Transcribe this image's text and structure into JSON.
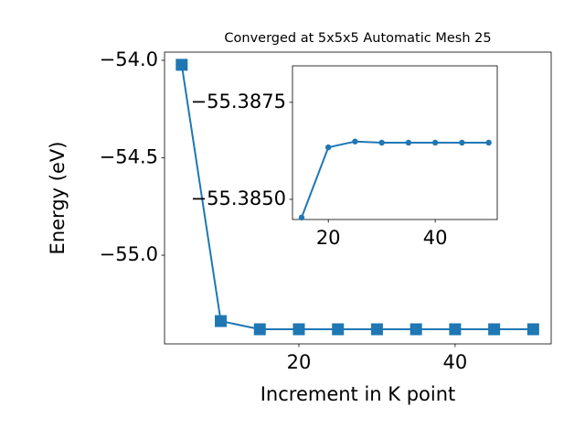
{
  "chart_data": [
    {
      "type": "line",
      "title": "Converged at 5x5x5 Automatic Mesh 25",
      "xlabel": "Increment in K point",
      "ylabel": "Energy (eV)",
      "x": [
        5,
        10,
        15,
        20,
        25,
        30,
        35,
        40,
        45,
        50
      ],
      "series": [
        {
          "color": "#1f77b4",
          "marker": "square",
          "values": [
            -54.023,
            -55.338,
            -55.38,
            -55.38,
            -55.38,
            -55.38,
            -55.38,
            -55.38,
            -55.38,
            -55.38
          ]
        }
      ],
      "xlim": [
        2.8,
        52.3
      ],
      "ylim": [
        -55.455,
        -53.958
      ],
      "xticks": [
        20,
        40
      ],
      "yticks": [
        {
          "value": -55.0,
          "label": "−55.0"
        },
        {
          "value": -54.5,
          "label": "−54.5"
        },
        {
          "value": -54.0,
          "label": "−54.0"
        }
      ]
    },
    {
      "type": "line",
      "x": [
        15,
        20,
        25,
        30,
        35,
        40,
        45,
        50
      ],
      "series": [
        {
          "color": "#1f77b4",
          "marker": "circle",
          "values": [
            -55.38453,
            -55.38634,
            -55.38649,
            -55.38646,
            -55.38646,
            -55.38646,
            -55.38646,
            -55.38646
          ]
        }
      ],
      "xlim": [
        13.3,
        51.6
      ],
      "ylim": [
        -55.38448,
        -55.38844
      ],
      "xticks": [
        20,
        40
      ],
      "yticks": [
        {
          "value": -55.385,
          "label": "−55.3850"
        },
        {
          "value": -55.3875,
          "label": "−55.3875"
        }
      ]
    }
  ]
}
